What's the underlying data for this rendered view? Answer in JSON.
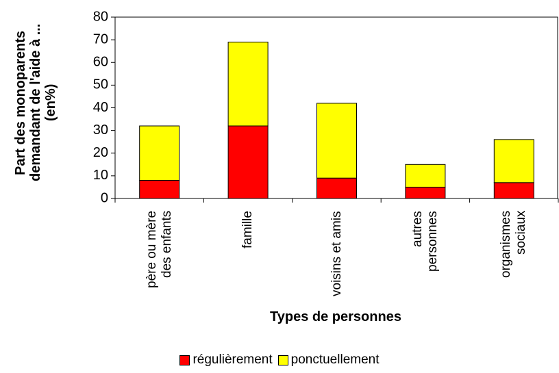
{
  "chart_data": {
    "type": "stacked_bar",
    "y_label": "Part des monoparents demandant de l'aide à ... (en%)",
    "x_label": "Types de personnes",
    "categories": [
      "père ou mère des enfants",
      "famille",
      "voisins et amis",
      "autres personnes",
      "organismes sociaux"
    ],
    "series": [
      {
        "name": "régulièrement",
        "color": "#ff0000",
        "values": [
          8,
          32,
          9,
          5,
          7
        ]
      },
      {
        "name": "ponctuellement",
        "color": "#ffff00",
        "values": [
          24,
          37,
          33,
          10,
          19
        ]
      }
    ],
    "ylim": [
      0,
      80
    ],
    "yticks": [
      0,
      10,
      20,
      30,
      40,
      50,
      60,
      70,
      80
    ],
    "grid": false,
    "legend": "bottom"
  }
}
